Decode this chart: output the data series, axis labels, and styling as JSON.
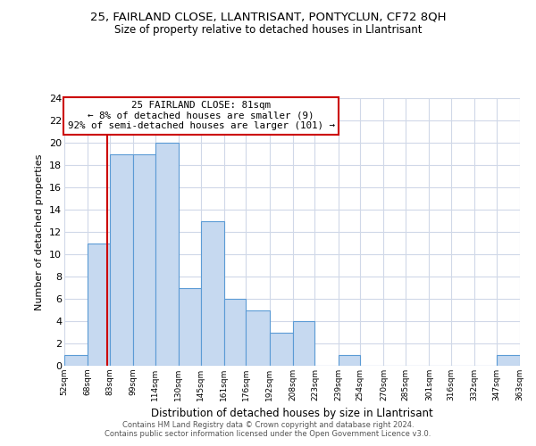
{
  "title": "25, FAIRLAND CLOSE, LLANTRISANT, PONTYCLUN, CF72 8QH",
  "subtitle": "Size of property relative to detached houses in Llantrisant",
  "xlabel": "Distribution of detached houses by size in Llantrisant",
  "ylabel": "Number of detached properties",
  "bin_edges": [
    52,
    68,
    83,
    99,
    114,
    130,
    145,
    161,
    176,
    192,
    208,
    223,
    239,
    254,
    270,
    285,
    301,
    316,
    332,
    347,
    363
  ],
  "counts": [
    1,
    11,
    19,
    19,
    20,
    7,
    13,
    6,
    5,
    3,
    4,
    0,
    1,
    0,
    0,
    0,
    0,
    0,
    0,
    1
  ],
  "bar_color": "#c6d9f0",
  "bar_edge_color": "#5b9bd5",
  "property_line_x": 81,
  "annotation_title": "25 FAIRLAND CLOSE: 81sqm",
  "annotation_line1": "← 8% of detached houses are smaller (9)",
  "annotation_line2": "92% of semi-detached houses are larger (101) →",
  "annotation_box_color": "#ffffff",
  "annotation_box_edge_color": "#cc0000",
  "property_line_color": "#cc0000",
  "ylim": [
    0,
    24
  ],
  "yticks": [
    0,
    2,
    4,
    6,
    8,
    10,
    12,
    14,
    16,
    18,
    20,
    22,
    24
  ],
  "footer1": "Contains HM Land Registry data © Crown copyright and database right 2024.",
  "footer2": "Contains public sector information licensed under the Open Government Licence v3.0.",
  "bg_color": "#ffffff",
  "grid_color": "#d0d8e8"
}
